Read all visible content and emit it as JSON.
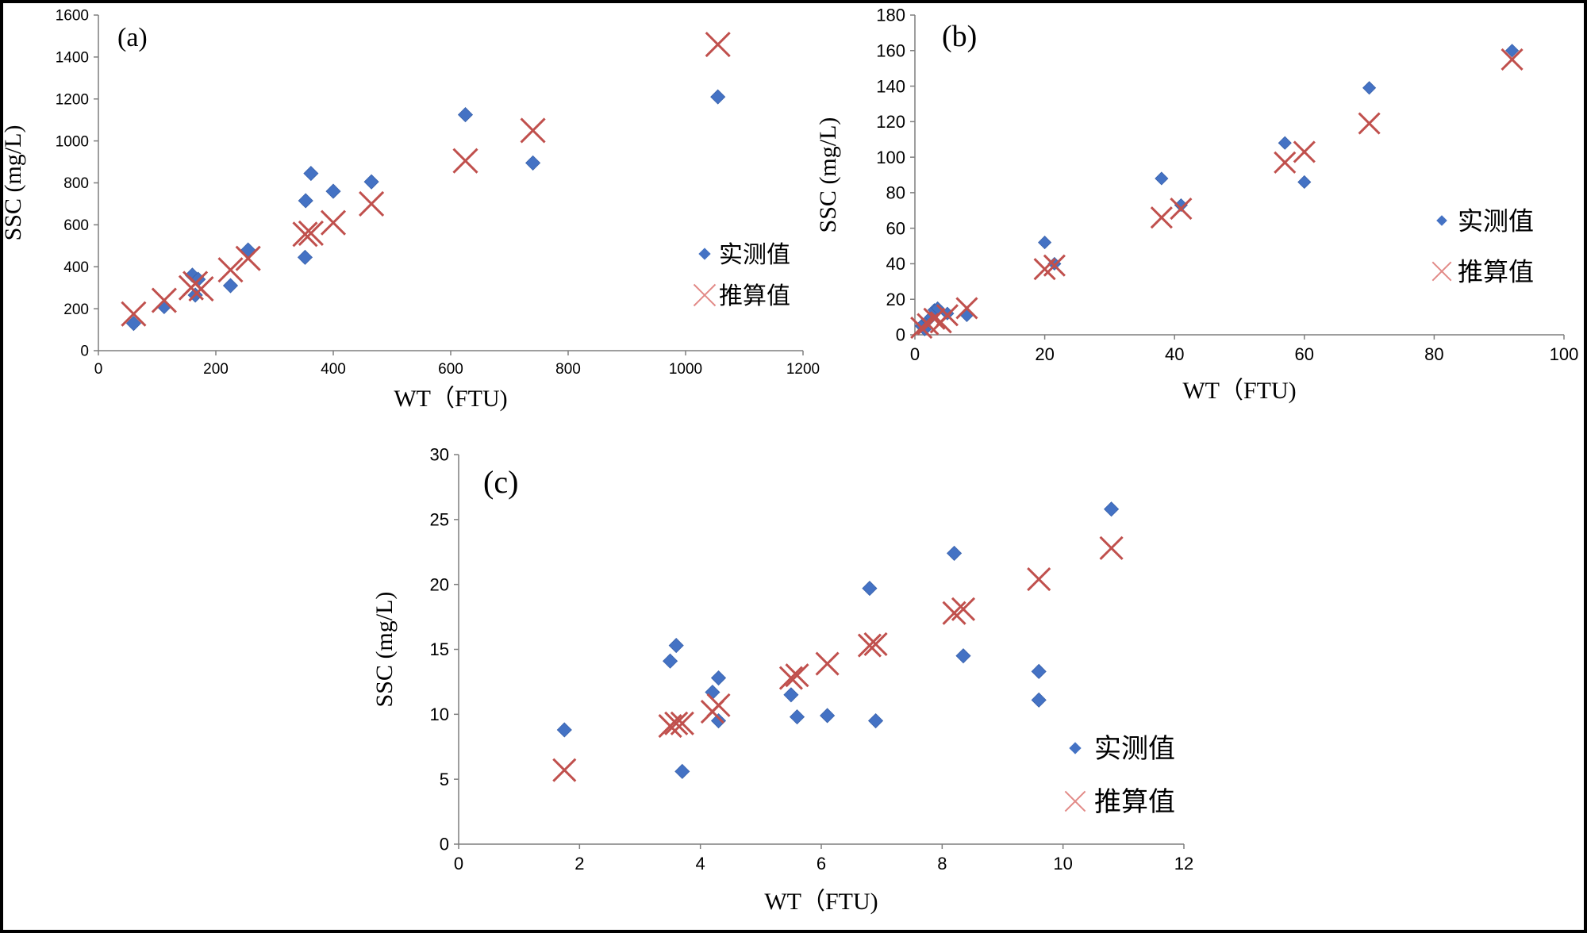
{
  "chart_data": [
    {
      "type": "scatter",
      "panel": "(a)",
      "xlabel": "WT（FTU)",
      "ylabel": "SSC (mg/L)",
      "xlim": [
        0,
        1200
      ],
      "ylim": [
        0,
        1600
      ],
      "xticks": [
        0,
        200,
        400,
        600,
        800,
        1000,
        1200
      ],
      "yticks": [
        0,
        200,
        400,
        600,
        800,
        1000,
        1200,
        1400,
        1600
      ],
      "legend_position": "right",
      "series": [
        {
          "name": "实测值",
          "marker": "diamond",
          "color": "#4472C4",
          "points": [
            [
              60,
              130
            ],
            [
              112,
              210
            ],
            [
              160,
              360
            ],
            [
              165,
              265
            ],
            [
              170,
              340
            ],
            [
              225,
              310
            ],
            [
              255,
              480
            ],
            [
              352,
              445
            ],
            [
              353,
              715
            ],
            [
              362,
              845
            ],
            [
              400,
              760
            ],
            [
              465,
              805
            ],
            [
              625,
              1125
            ],
            [
              740,
              895
            ],
            [
              1055,
              1210
            ]
          ]
        },
        {
          "name": "推算值",
          "marker": "x",
          "color": "#C0504D",
          "points": [
            [
              60,
              175
            ],
            [
              112,
              240
            ],
            [
              158,
              300
            ],
            [
              165,
              320
            ],
            [
              175,
              295
            ],
            [
              225,
              385
            ],
            [
              255,
              440
            ],
            [
              352,
              555
            ],
            [
              362,
              560
            ],
            [
              400,
              610
            ],
            [
              465,
              700
            ],
            [
              625,
              905
            ],
            [
              740,
              1050
            ],
            [
              1055,
              1460
            ]
          ]
        }
      ]
    },
    {
      "type": "scatter",
      "panel": "(b)",
      "xlabel": "WT（FTU)",
      "ylabel": "SSC (mg/L)",
      "xlim": [
        0,
        100
      ],
      "ylim": [
        0,
        180
      ],
      "xticks": [
        0,
        20,
        40,
        60,
        80,
        100
      ],
      "yticks": [
        0,
        20,
        40,
        60,
        80,
        100,
        120,
        140,
        160,
        180
      ],
      "legend_position": "right",
      "series": [
        {
          "name": "实测值",
          "marker": "diamond",
          "color": "#4472C4",
          "points": [
            [
              1,
              5
            ],
            [
              1.5,
              3
            ],
            [
              2,
              8
            ],
            [
              2.5,
              10
            ],
            [
              3,
              14
            ],
            [
              3.5,
              15
            ],
            [
              5,
              12
            ],
            [
              8,
              11
            ],
            [
              20,
              52
            ],
            [
              21.5,
              40
            ],
            [
              38,
              88
            ],
            [
              41,
              73
            ],
            [
              57,
              108
            ],
            [
              60,
              86
            ],
            [
              70,
              139
            ],
            [
              92,
              160
            ]
          ]
        },
        {
          "name": "推算值",
          "marker": "x",
          "color": "#C0504D",
          "points": [
            [
              1,
              4
            ],
            [
              2,
              6
            ],
            [
              3,
              9
            ],
            [
              4,
              7
            ],
            [
              5,
              11
            ],
            [
              8,
              15
            ],
            [
              20,
              37
            ],
            [
              21.5,
              39
            ],
            [
              38,
              66
            ],
            [
              41,
              71
            ],
            [
              57,
              97
            ],
            [
              60,
              103
            ],
            [
              70,
              119
            ],
            [
              92,
              155
            ]
          ]
        }
      ]
    },
    {
      "type": "scatter",
      "panel": "(c)",
      "xlabel": "WT（FTU)",
      "ylabel": "SSC (mg/L)",
      "xlim": [
        0,
        12
      ],
      "ylim": [
        0,
        30
      ],
      "xticks": [
        0,
        2,
        4,
        6,
        8,
        10,
        12
      ],
      "yticks": [
        0,
        5,
        10,
        15,
        20,
        25,
        30
      ],
      "legend_position": "bottom-right",
      "series": [
        {
          "name": "实测值",
          "marker": "diamond",
          "color": "#4472C4",
          "points": [
            [
              1.75,
              8.8
            ],
            [
              3.5,
              14.1
            ],
            [
              3.6,
              15.3
            ],
            [
              3.7,
              5.6
            ],
            [
              4.2,
              11.7
            ],
            [
              4.3,
              12.8
            ],
            [
              4.3,
              9.5
            ],
            [
              5.5,
              11.5
            ],
            [
              5.6,
              9.8
            ],
            [
              6.1,
              9.9
            ],
            [
              6.8,
              19.7
            ],
            [
              6.9,
              9.5
            ],
            [
              8.2,
              22.4
            ],
            [
              8.35,
              14.5
            ],
            [
              9.6,
              13.3
            ],
            [
              9.6,
              11.1
            ],
            [
              10.8,
              25.8
            ]
          ]
        },
        {
          "name": "推算值",
          "marker": "x",
          "color": "#C0504D",
          "points": [
            [
              1.75,
              5.7
            ],
            [
              3.5,
              9.1
            ],
            [
              3.6,
              9.3
            ],
            [
              3.7,
              9.3
            ],
            [
              4.2,
              10.2
            ],
            [
              4.3,
              10.7
            ],
            [
              5.5,
              12.8
            ],
            [
              5.6,
              13.0
            ],
            [
              6.1,
              13.9
            ],
            [
              6.8,
              15.3
            ],
            [
              6.9,
              15.4
            ],
            [
              8.2,
              17.8
            ],
            [
              8.35,
              18.1
            ],
            [
              9.6,
              20.4
            ],
            [
              10.8,
              22.8
            ]
          ]
        }
      ]
    }
  ]
}
